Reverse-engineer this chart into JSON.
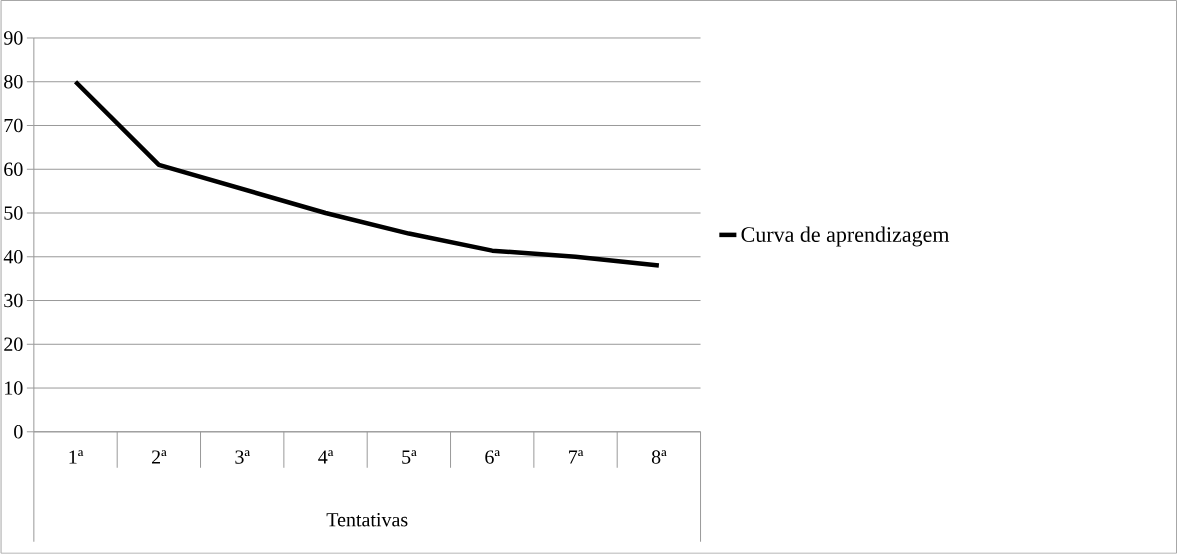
{
  "chart_data": {
    "type": "line",
    "xlabel": "Tentativas",
    "categories": [
      "1ª",
      "2ª",
      "3ª",
      "4ª",
      "5ª",
      "6ª",
      "7ª",
      "8ª"
    ],
    "series": [
      {
        "name": "Curva de aprendizagem",
        "color": "#000000",
        "values": [
          80,
          61,
          55.5,
          50,
          45.3,
          41.4,
          40,
          38
        ]
      }
    ],
    "ylim": [
      0,
      90
    ],
    "yticks": [
      0,
      10,
      20,
      30,
      40,
      50,
      60,
      70,
      80,
      90
    ],
    "grid": "y",
    "legend": "right",
    "marker": "none",
    "line_style": "solid"
  }
}
